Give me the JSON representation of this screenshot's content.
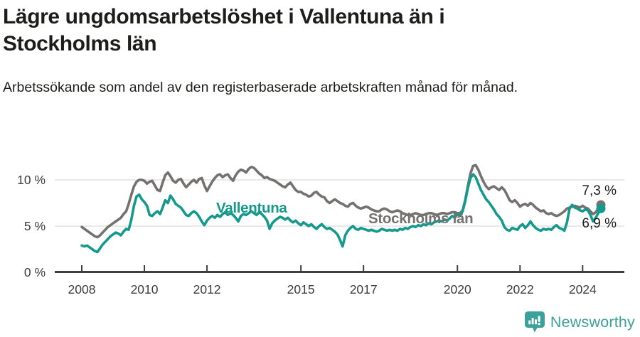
{
  "header": {
    "title": "Lägre ungdomsarbetslöshet i Vallentuna än i Stockholms län",
    "subtitle": "Arbetssökande som andel av den registerbaserade arbetskraften månad för månad."
  },
  "footer": {
    "brand": "Newsworthy"
  },
  "colors": {
    "vallentuna": "#14998c",
    "stockholm": "#757170",
    "grid": "#e2e2e2",
    "axis": "#3f3f3f",
    "tick_text": "#3c3c3c",
    "label_text": "#1d1d1b",
    "brand_teal": "#3ba19a"
  },
  "chart_data": {
    "type": "line",
    "title": "Lägre ungdomsarbetslöshet i Vallentuna än i Stockholms län",
    "subtitle": "Arbetssökande som andel av den registerbaserade arbetskraften månad för månad.",
    "unit": "%",
    "x_start": "2008-01",
    "x_end": "2024-08",
    "x_frequency": "monthly",
    "x_tick_labels": [
      "2008",
      "2010",
      "2012",
      "2015",
      "2017",
      "2020",
      "2022",
      "2024"
    ],
    "x_tick_month_index": [
      0,
      24,
      48,
      84,
      108,
      144,
      168,
      192
    ],
    "y_ticks": [
      {
        "value": 0,
        "label": "0 %"
      },
      {
        "value": 5,
        "label": "5 %"
      },
      {
        "value": 10,
        "label": "10 %"
      }
    ],
    "ylim": [
      0,
      12.3
    ],
    "grid": "horizontal",
    "legend_position": "inline-labels",
    "series": [
      {
        "name": "Stockholms län",
        "color": "#757170",
        "end_label": "7,3 %",
        "end_value": 7.3,
        "values": [
          4.9,
          4.7,
          4.5,
          4.3,
          4.1,
          3.9,
          3.8,
          4.0,
          4.3,
          4.6,
          4.9,
          5.1,
          5.3,
          5.5,
          5.7,
          5.9,
          6.3,
          6.6,
          7.4,
          8.4,
          9.3,
          9.8,
          10.0,
          10.0,
          9.9,
          9.6,
          9.8,
          9.9,
          9.4,
          8.9,
          8.8,
          9.7,
          10.5,
          10.8,
          10.4,
          9.9,
          9.7,
          10.0,
          10.1,
          9.6,
          9.2,
          9.5,
          9.8,
          10.0,
          9.7,
          10.1,
          10.2,
          9.4,
          8.8,
          9.3,
          9.8,
          10.2,
          10.5,
          10.6,
          10.3,
          10.5,
          10.6,
          10.2,
          9.9,
          10.5,
          10.9,
          11.1,
          11.0,
          10.8,
          11.2,
          11.4,
          11.3,
          11.0,
          10.7,
          10.5,
          10.2,
          10.3,
          10.1,
          10.0,
          9.9,
          9.7,
          9.5,
          9.3,
          9.2,
          9.5,
          9.7,
          9.3,
          8.9,
          8.7,
          8.7,
          8.5,
          8.4,
          8.2,
          8.3,
          8.6,
          8.7,
          8.4,
          8.2,
          8.1,
          7.7,
          7.5,
          7.7,
          7.9,
          7.7,
          7.5,
          7.4,
          7.2,
          7.1,
          7.4,
          7.5,
          7.2,
          7.0,
          6.9,
          7.0,
          7.1,
          7.0,
          6.8,
          6.7,
          6.6,
          6.6,
          6.8,
          6.9,
          6.8,
          6.6,
          6.5,
          6.6,
          6.7,
          6.6,
          6.4,
          6.3,
          6.2,
          6.2,
          6.3,
          6.4,
          6.3,
          6.2,
          6.2,
          6.3,
          6.4,
          6.4,
          6.3,
          6.2,
          6.3,
          6.4,
          6.4,
          6.3,
          6.4,
          6.5,
          6.5,
          6.4,
          6.4,
          6.7,
          7.8,
          9.3,
          10.7,
          11.5,
          11.6,
          11.1,
          10.4,
          9.8,
          9.3,
          9.0,
          9.2,
          9.3,
          9.1,
          8.9,
          9.2,
          8.9,
          8.4,
          7.8,
          7.6,
          7.8,
          7.5,
          7.1,
          7.3,
          7.4,
          7.2,
          7.5,
          7.3,
          7.0,
          6.8,
          6.6,
          6.7,
          6.4,
          6.3,
          6.4,
          6.2,
          6.1,
          6.2,
          6.4,
          6.6,
          6.9,
          7.0,
          7.1,
          7.2,
          7.1,
          7.0,
          7.2,
          7.0,
          6.9,
          6.6,
          6.3,
          6.5,
          6.9,
          7.3
        ]
      },
      {
        "name": "Vallentuna",
        "color": "#14998c",
        "end_label": "6,9 %",
        "end_value": 6.9,
        "values": [
          2.9,
          2.8,
          2.9,
          2.7,
          2.5,
          2.3,
          2.2,
          2.6,
          3.0,
          3.3,
          3.6,
          3.9,
          4.1,
          4.3,
          4.2,
          4.0,
          4.4,
          4.7,
          4.6,
          5.7,
          7.2,
          8.2,
          8.4,
          7.9,
          7.6,
          7.2,
          6.2,
          6.1,
          6.4,
          6.6,
          6.3,
          7.0,
          7.8,
          7.5,
          8.3,
          7.9,
          7.4,
          7.2,
          7.0,
          6.6,
          6.2,
          6.1,
          6.4,
          6.6,
          6.4,
          6.0,
          5.5,
          5.1,
          5.6,
          5.9,
          6.1,
          5.9,
          6.2,
          6.0,
          6.3,
          6.5,
          6.2,
          6.4,
          6.2,
          5.9,
          5.5,
          6.1,
          6.3,
          6.2,
          6.4,
          6.6,
          6.4,
          6.2,
          6.5,
          6.3,
          6.0,
          5.6,
          4.7,
          5.3,
          5.6,
          5.8,
          6.0,
          5.9,
          5.7,
          5.9,
          5.6,
          5.4,
          5.6,
          5.3,
          5.1,
          5.4,
          5.2,
          5.0,
          5.2,
          4.9,
          4.7,
          5.0,
          5.2,
          4.9,
          4.7,
          4.8,
          4.6,
          4.4,
          4.1,
          3.5,
          2.8,
          4.0,
          4.5,
          4.8,
          5.0,
          4.7,
          4.6,
          4.8,
          4.7,
          4.6,
          4.5,
          4.6,
          4.5,
          4.4,
          4.5,
          4.7,
          4.6,
          4.5,
          4.6,
          4.5,
          4.6,
          4.5,
          4.7,
          4.6,
          4.8,
          4.7,
          4.9,
          5.0,
          4.9,
          5.1,
          5.0,
          5.2,
          5.1,
          5.3,
          5.2,
          5.4,
          5.5,
          5.6,
          5.5,
          5.7,
          5.6,
          5.8,
          6.1,
          5.9,
          6.3,
          6.1,
          6.6,
          7.7,
          9.1,
          10.2,
          10.6,
          10.3,
          9.6,
          8.9,
          8.4,
          7.9,
          7.6,
          7.2,
          6.8,
          6.3,
          6.0,
          5.6,
          4.9,
          4.6,
          4.5,
          4.8,
          4.7,
          4.6,
          5.0,
          5.2,
          4.8,
          5.1,
          5.5,
          5.1,
          4.8,
          4.6,
          4.5,
          4.7,
          4.6,
          4.7,
          4.6,
          4.9,
          5.1,
          4.8,
          4.7,
          4.5,
          5.4,
          6.9,
          7.3,
          7.0,
          6.9,
          6.7,
          6.6,
          6.8,
          6.7,
          6.2,
          5.5,
          5.9,
          6.4,
          6.9
        ]
      }
    ]
  }
}
